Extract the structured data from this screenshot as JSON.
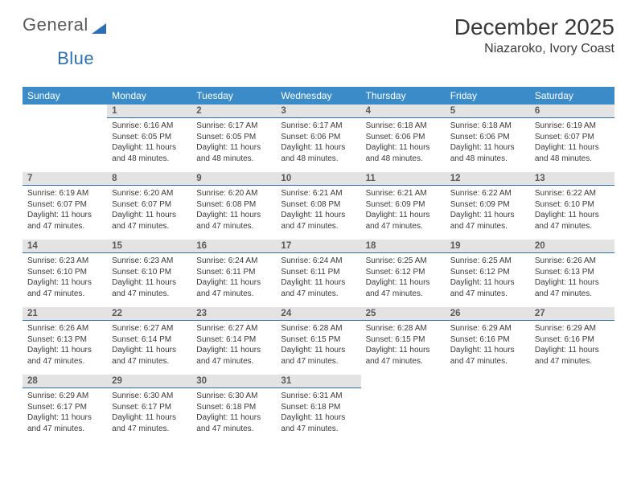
{
  "brand": {
    "part1": "General",
    "part2": "Blue"
  },
  "title": "December 2025",
  "location": "Niazaroko, Ivory Coast",
  "colors": {
    "header_bg": "#3b8bc9",
    "daynum_bg": "#e3e3e3",
    "daynum_border": "#2d6fb5",
    "text": "#3a3a3a",
    "brand_blue": "#2d6fb5"
  },
  "dow": [
    "Sunday",
    "Monday",
    "Tuesday",
    "Wednesday",
    "Thursday",
    "Friday",
    "Saturday"
  ],
  "weeks": [
    {
      "nums": [
        "",
        "1",
        "2",
        "3",
        "4",
        "5",
        "6"
      ],
      "cells": [
        null,
        {
          "sr": "Sunrise: 6:16 AM",
          "ss": "Sunset: 6:05 PM",
          "dl": "Daylight: 11 hours and 48 minutes."
        },
        {
          "sr": "Sunrise: 6:17 AM",
          "ss": "Sunset: 6:05 PM",
          "dl": "Daylight: 11 hours and 48 minutes."
        },
        {
          "sr": "Sunrise: 6:17 AM",
          "ss": "Sunset: 6:06 PM",
          "dl": "Daylight: 11 hours and 48 minutes."
        },
        {
          "sr": "Sunrise: 6:18 AM",
          "ss": "Sunset: 6:06 PM",
          "dl": "Daylight: 11 hours and 48 minutes."
        },
        {
          "sr": "Sunrise: 6:18 AM",
          "ss": "Sunset: 6:06 PM",
          "dl": "Daylight: 11 hours and 48 minutes."
        },
        {
          "sr": "Sunrise: 6:19 AM",
          "ss": "Sunset: 6:07 PM",
          "dl": "Daylight: 11 hours and 48 minutes."
        }
      ]
    },
    {
      "nums": [
        "7",
        "8",
        "9",
        "10",
        "11",
        "12",
        "13"
      ],
      "cells": [
        {
          "sr": "Sunrise: 6:19 AM",
          "ss": "Sunset: 6:07 PM",
          "dl": "Daylight: 11 hours and 47 minutes."
        },
        {
          "sr": "Sunrise: 6:20 AM",
          "ss": "Sunset: 6:07 PM",
          "dl": "Daylight: 11 hours and 47 minutes."
        },
        {
          "sr": "Sunrise: 6:20 AM",
          "ss": "Sunset: 6:08 PM",
          "dl": "Daylight: 11 hours and 47 minutes."
        },
        {
          "sr": "Sunrise: 6:21 AM",
          "ss": "Sunset: 6:08 PM",
          "dl": "Daylight: 11 hours and 47 minutes."
        },
        {
          "sr": "Sunrise: 6:21 AM",
          "ss": "Sunset: 6:09 PM",
          "dl": "Daylight: 11 hours and 47 minutes."
        },
        {
          "sr": "Sunrise: 6:22 AM",
          "ss": "Sunset: 6:09 PM",
          "dl": "Daylight: 11 hours and 47 minutes."
        },
        {
          "sr": "Sunrise: 6:22 AM",
          "ss": "Sunset: 6:10 PM",
          "dl": "Daylight: 11 hours and 47 minutes."
        }
      ]
    },
    {
      "nums": [
        "14",
        "15",
        "16",
        "17",
        "18",
        "19",
        "20"
      ],
      "cells": [
        {
          "sr": "Sunrise: 6:23 AM",
          "ss": "Sunset: 6:10 PM",
          "dl": "Daylight: 11 hours and 47 minutes."
        },
        {
          "sr": "Sunrise: 6:23 AM",
          "ss": "Sunset: 6:10 PM",
          "dl": "Daylight: 11 hours and 47 minutes."
        },
        {
          "sr": "Sunrise: 6:24 AM",
          "ss": "Sunset: 6:11 PM",
          "dl": "Daylight: 11 hours and 47 minutes."
        },
        {
          "sr": "Sunrise: 6:24 AM",
          "ss": "Sunset: 6:11 PM",
          "dl": "Daylight: 11 hours and 47 minutes."
        },
        {
          "sr": "Sunrise: 6:25 AM",
          "ss": "Sunset: 6:12 PM",
          "dl": "Daylight: 11 hours and 47 minutes."
        },
        {
          "sr": "Sunrise: 6:25 AM",
          "ss": "Sunset: 6:12 PM",
          "dl": "Daylight: 11 hours and 47 minutes."
        },
        {
          "sr": "Sunrise: 6:26 AM",
          "ss": "Sunset: 6:13 PM",
          "dl": "Daylight: 11 hours and 47 minutes."
        }
      ]
    },
    {
      "nums": [
        "21",
        "22",
        "23",
        "24",
        "25",
        "26",
        "27"
      ],
      "cells": [
        {
          "sr": "Sunrise: 6:26 AM",
          "ss": "Sunset: 6:13 PM",
          "dl": "Daylight: 11 hours and 47 minutes."
        },
        {
          "sr": "Sunrise: 6:27 AM",
          "ss": "Sunset: 6:14 PM",
          "dl": "Daylight: 11 hours and 47 minutes."
        },
        {
          "sr": "Sunrise: 6:27 AM",
          "ss": "Sunset: 6:14 PM",
          "dl": "Daylight: 11 hours and 47 minutes."
        },
        {
          "sr": "Sunrise: 6:28 AM",
          "ss": "Sunset: 6:15 PM",
          "dl": "Daylight: 11 hours and 47 minutes."
        },
        {
          "sr": "Sunrise: 6:28 AM",
          "ss": "Sunset: 6:15 PM",
          "dl": "Daylight: 11 hours and 47 minutes."
        },
        {
          "sr": "Sunrise: 6:29 AM",
          "ss": "Sunset: 6:16 PM",
          "dl": "Daylight: 11 hours and 47 minutes."
        },
        {
          "sr": "Sunrise: 6:29 AM",
          "ss": "Sunset: 6:16 PM",
          "dl": "Daylight: 11 hours and 47 minutes."
        }
      ]
    },
    {
      "nums": [
        "28",
        "29",
        "30",
        "31",
        "",
        "",
        ""
      ],
      "cells": [
        {
          "sr": "Sunrise: 6:29 AM",
          "ss": "Sunset: 6:17 PM",
          "dl": "Daylight: 11 hours and 47 minutes."
        },
        {
          "sr": "Sunrise: 6:30 AM",
          "ss": "Sunset: 6:17 PM",
          "dl": "Daylight: 11 hours and 47 minutes."
        },
        {
          "sr": "Sunrise: 6:30 AM",
          "ss": "Sunset: 6:18 PM",
          "dl": "Daylight: 11 hours and 47 minutes."
        },
        {
          "sr": "Sunrise: 6:31 AM",
          "ss": "Sunset: 6:18 PM",
          "dl": "Daylight: 11 hours and 47 minutes."
        },
        null,
        null,
        null
      ]
    }
  ]
}
